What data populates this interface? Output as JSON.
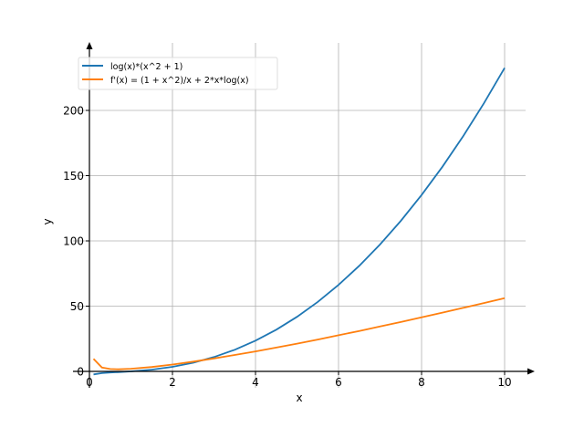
{
  "chart_data": {
    "type": "line",
    "title": "",
    "xlabel": "x",
    "ylabel": "y",
    "xlim": [
      -0.4,
      10.5
    ],
    "ylim": [
      -12,
      252
    ],
    "grid": true,
    "legend_position": "top-left",
    "xticks": [
      "0",
      "2",
      "4",
      "6",
      "8",
      "10"
    ],
    "xtick_values": [
      0,
      2,
      4,
      6,
      8,
      10
    ],
    "yticks": [
      "0",
      "50",
      "100",
      "150",
      "200"
    ],
    "ytick_values": [
      0,
      50,
      100,
      150,
      200
    ],
    "x": [
      0.1,
      0.3,
      0.5,
      0.7,
      1,
      1.5,
      2,
      2.5,
      3,
      3.5,
      4,
      4.5,
      5,
      5.5,
      6,
      6.5,
      7,
      7.5,
      8,
      8.5,
      9,
      9.5,
      10
    ],
    "series": [
      {
        "name": "log(x)*(x^2 + 1)",
        "color": "#1f77b4",
        "values": [
          -2.33,
          -1.31,
          -0.87,
          -0.53,
          0,
          1.32,
          3.47,
          6.64,
          10.99,
          16.6,
          23.57,
          31.96,
          41.85,
          53.27,
          66.29,
          80.95,
          97.3,
          115.35,
          135.16,
          156.76,
          180.17,
          205.43,
          232.56
        ]
      },
      {
        "name": "f'(x) = (1 + x^2)/x + 2*x*log(x)",
        "color": "#ff7f0e",
        "values": [
          9.64,
          2.91,
          1.81,
          1.63,
          2,
          3.38,
          5.27,
          7.48,
          9.93,
          12.56,
          15.34,
          18.26,
          21.29,
          24.43,
          27.67,
          30.99,
          34.39,
          37.86,
          41.4,
          45.0,
          48.66,
          52.38,
          56.15
        ]
      }
    ]
  }
}
